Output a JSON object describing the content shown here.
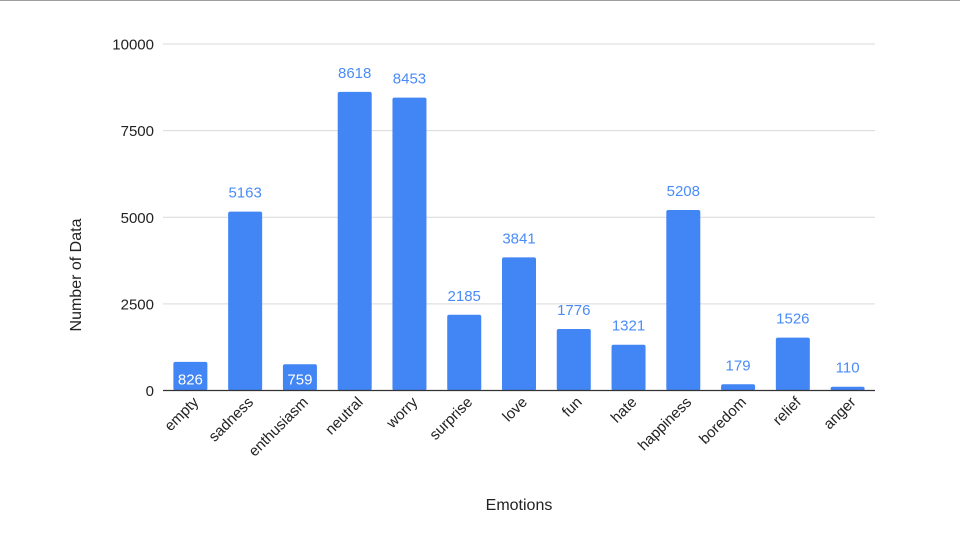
{
  "chart_data": {
    "type": "bar",
    "title": "",
    "xlabel": "Emotions",
    "ylabel": "Number of Data",
    "categories": [
      "empty",
      "sadness",
      "enthusiasm",
      "neutral",
      "worry",
      "surprise",
      "love",
      "fun",
      "hate",
      "happiness",
      "boredom",
      "relief",
      "anger"
    ],
    "values": [
      826,
      5163,
      759,
      8618,
      8453,
      2185,
      3841,
      1776,
      1321,
      5208,
      179,
      1526,
      110
    ],
    "ylim": [
      0,
      10000
    ],
    "yticks": [
      0,
      2500,
      5000,
      7500,
      10000
    ],
    "grid": true,
    "legend": "none",
    "colors": {
      "bar": "#4285f4",
      "label_outside": "#4a8cf7",
      "label_inside": "#ffffff",
      "grid": "#d9d9d9",
      "axis": "#333333"
    }
  }
}
